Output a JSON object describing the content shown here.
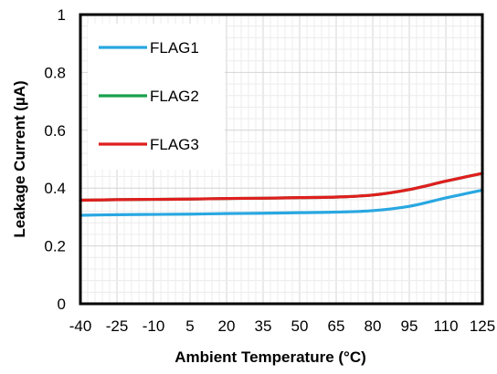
{
  "chart_data": {
    "type": "line",
    "title": "",
    "xlabel": "Ambient Temperature (°C)",
    "ylabel": "Leakage Current (µA)",
    "xlim": [
      -40,
      125
    ],
    "ylim": [
      0,
      1
    ],
    "xticks": [
      -40,
      -25,
      -10,
      5,
      20,
      35,
      50,
      65,
      80,
      95,
      110,
      125
    ],
    "yticks": [
      0,
      0.2,
      0.4,
      0.6,
      0.8,
      1
    ],
    "ytick_labels": [
      "0",
      "0.2",
      "0.4",
      "0.6",
      "0.8",
      "1"
    ],
    "grid": true,
    "legend_position": "top-left",
    "series": [
      {
        "name": "FLAG1",
        "color": "#29a7e1",
        "x": [
          -40,
          -25,
          -10,
          5,
          20,
          35,
          50,
          65,
          80,
          95,
          110,
          125
        ],
        "y": [
          0.306,
          0.308,
          0.309,
          0.31,
          0.312,
          0.313,
          0.315,
          0.317,
          0.322,
          0.337,
          0.366,
          0.393
        ]
      },
      {
        "name": "FLAG2",
        "color": "#17a14b",
        "x": [
          -40,
          -25,
          -10,
          5,
          20,
          35,
          50,
          65,
          80,
          95,
          110,
          125
        ],
        "y": [
          0.358,
          0.36,
          0.361,
          0.362,
          0.364,
          0.365,
          0.367,
          0.369,
          0.376,
          0.395,
          0.424,
          0.451
        ]
      },
      {
        "name": "FLAG3",
        "color": "#e01e1e",
        "x": [
          -40,
          -25,
          -10,
          5,
          20,
          35,
          50,
          65,
          80,
          95,
          110,
          125
        ],
        "y": [
          0.358,
          0.36,
          0.361,
          0.362,
          0.364,
          0.365,
          0.367,
          0.369,
          0.376,
          0.395,
          0.424,
          0.451
        ]
      }
    ]
  }
}
